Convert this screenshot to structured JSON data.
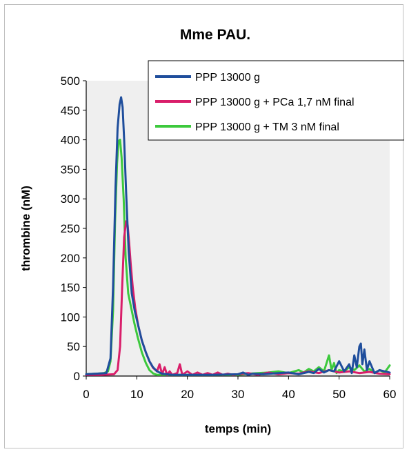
{
  "chart_data": {
    "type": "line",
    "title": "Mme PAU.",
    "xlabel": "temps (min)",
    "ylabel": "thrombine (nM)",
    "xlim": [
      0,
      60
    ],
    "ylim": [
      0,
      500
    ],
    "xticks": [
      0,
      10,
      20,
      30,
      40,
      50,
      60
    ],
    "yticks": [
      0,
      50,
      100,
      150,
      200,
      250,
      300,
      350,
      400,
      450,
      500
    ],
    "grid": false,
    "legend_position": "top-right",
    "series": [
      {
        "name": "PPP 13000 g",
        "color": "#1f4e9c",
        "x": [
          0,
          2,
          4,
          4.8,
          5.3,
          5.8,
          6.2,
          6.6,
          6.9,
          7.2,
          7.5,
          7.9,
          8.4,
          9,
          9.6,
          10.3,
          11,
          11.8,
          12.5,
          13.2,
          14,
          15,
          17,
          20,
          25,
          30,
          31,
          32,
          33,
          35,
          38,
          40,
          42,
          44,
          45,
          46,
          47,
          48,
          49,
          50,
          51,
          52,
          52.5,
          53,
          53.5,
          54,
          54.3,
          54.6,
          55,
          55.5,
          56,
          57,
          58,
          60
        ],
        "y": [
          3,
          4,
          5,
          30,
          150,
          320,
          420,
          460,
          472,
          455,
          400,
          310,
          210,
          140,
          110,
          85,
          60,
          40,
          25,
          15,
          8,
          4,
          2,
          2,
          2,
          3,
          6,
          2,
          4,
          3,
          5,
          6,
          3,
          7,
          5,
          12,
          6,
          10,
          8,
          25,
          8,
          20,
          5,
          35,
          15,
          50,
          55,
          20,
          45,
          10,
          25,
          5,
          10,
          6
        ]
      },
      {
        "name": "PPP 13000 g + PCa 1,7 nM final",
        "color": "#d91e6a",
        "x": [
          0,
          3,
          5.5,
          6.2,
          6.7,
          7.1,
          7.5,
          7.9,
          8.2,
          8.5,
          8.8,
          9.2,
          9.7,
          10.3,
          11,
          11.8,
          12.5,
          13.2,
          14,
          14.5,
          15,
          15.5,
          16,
          16.5,
          17,
          18,
          18.5,
          19,
          20,
          21,
          22,
          23,
          24,
          25,
          26,
          27,
          28,
          29,
          30,
          32,
          34,
          36,
          38,
          40,
          42,
          44,
          46,
          48,
          50,
          52,
          54,
          56,
          58,
          60
        ],
        "y": [
          2,
          2,
          3,
          10,
          50,
          150,
          235,
          262,
          255,
          225,
          190,
          150,
          115,
          85,
          60,
          40,
          25,
          14,
          8,
          20,
          3,
          15,
          2,
          8,
          2,
          5,
          20,
          2,
          8,
          2,
          6,
          2,
          5,
          2,
          6,
          2,
          4,
          2,
          3,
          5,
          2,
          6,
          3,
          5,
          4,
          8,
          5,
          10,
          6,
          8,
          5,
          7,
          4,
          3
        ]
      },
      {
        "name": "PPP 13000 g + TM 3 nM final",
        "color": "#3dc93d",
        "x": [
          0,
          2,
          3.5,
          4.3,
          4.8,
          5.3,
          5.7,
          6.1,
          6.4,
          6.7,
          7.0,
          7.4,
          7.8,
          8.3,
          8.9,
          9.5,
          10.2,
          11,
          11.8,
          12.5,
          13.3,
          14,
          16,
          20,
          25,
          30,
          32,
          34,
          36,
          38,
          40,
          42,
          43,
          44,
          45,
          46,
          47,
          48,
          48.5,
          49,
          49.5,
          50,
          51,
          52,
          53,
          54,
          55,
          56,
          57,
          58,
          59,
          60
        ],
        "y": [
          3,
          4,
          5,
          8,
          25,
          110,
          260,
          360,
          398,
          400,
          370,
          300,
          200,
          140,
          115,
          90,
          65,
          40,
          22,
          10,
          4,
          2,
          2,
          2,
          2,
          2,
          4,
          5,
          6,
          8,
          5,
          10,
          6,
          12,
          8,
          15,
          8,
          35,
          10,
          22,
          5,
          10,
          8,
          15,
          10,
          18,
          8,
          12,
          5,
          10,
          6,
          18
        ]
      }
    ]
  }
}
